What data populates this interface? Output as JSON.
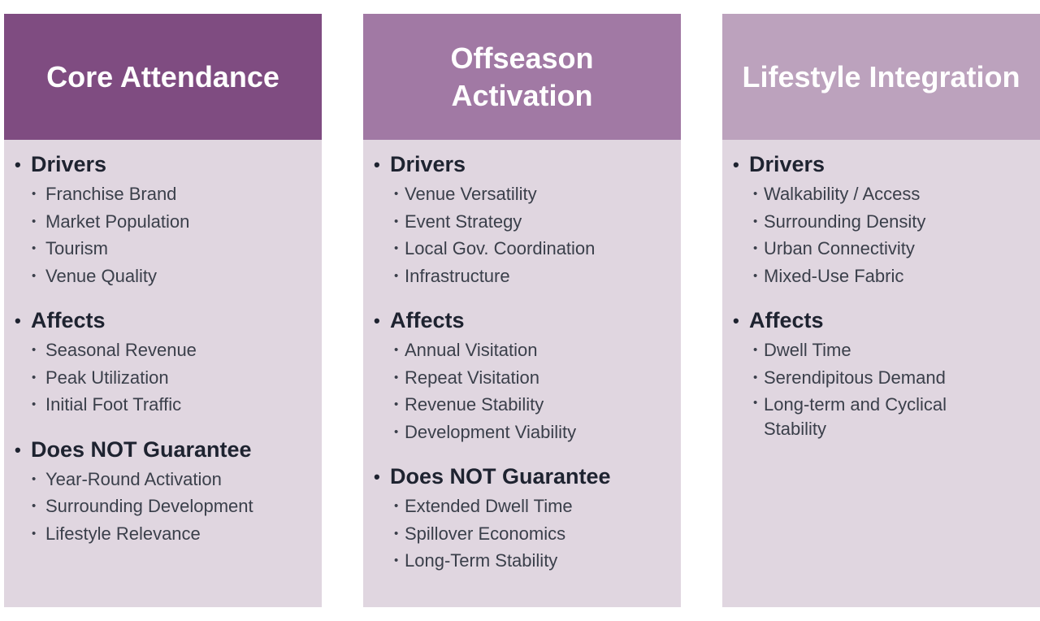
{
  "columns": [
    {
      "title": "Core Attendance",
      "sections": [
        {
          "title": "Drivers",
          "items": [
            "Franchise Brand",
            "Market Population",
            "Tourism",
            "Venue Quality"
          ]
        },
        {
          "title": "Affects",
          "items": [
            "Seasonal Revenue",
            "Peak Utilization",
            "Initial Foot Traffic"
          ]
        },
        {
          "title": "Does NOT Guarantee",
          "items": [
            "Year-Round Activation",
            "Surrounding Development",
            "Lifestyle Relevance"
          ]
        }
      ]
    },
    {
      "title": "Offseason Activation",
      "sections": [
        {
          "title": "Drivers",
          "items": [
            "Venue Versatility",
            "Event Strategy",
            "Local Gov. Coordination",
            "Infrastructure"
          ]
        },
        {
          "title": "Affects",
          "items": [
            "Annual Visitation",
            "Repeat Visitation",
            "Revenue Stability",
            "Development Viability"
          ]
        },
        {
          "title": "Does NOT Guarantee",
          "items": [
            "Extended Dwell Time",
            "Spillover Economics",
            "Long-Term Stability"
          ]
        }
      ]
    },
    {
      "title": "Lifestyle Integration",
      "sections": [
        {
          "title": "Drivers",
          "items": [
            "Walkability / Access",
            "Surrounding Density",
            "Urban Connectivity",
            "Mixed-Use Fabric"
          ]
        },
        {
          "title": "Affects",
          "items": [
            "Dwell Time",
            "Serendipitous Demand",
            "Long-term and Cyclical Stability"
          ]
        }
      ]
    }
  ],
  "colors": {
    "header_1": "#7f4c81",
    "header_2": "#a179a4",
    "header_3": "#bca2bd",
    "panel": "#e0d6e0"
  }
}
